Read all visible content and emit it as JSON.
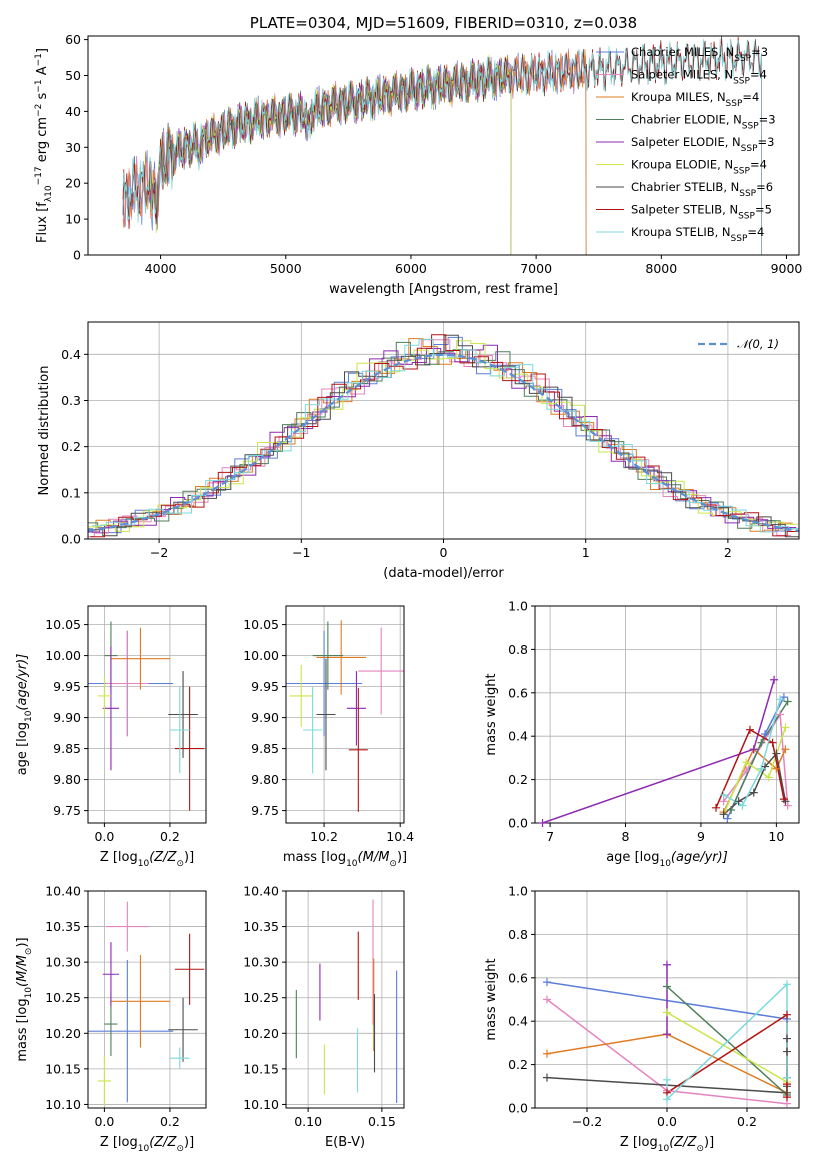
{
  "colors": {
    "Chabrier MILES": "#5b7fd8",
    "Salpeter MILES": "#e584c0",
    "Kroupa MILES": "#e07b23",
    "Chabrier ELODIE": "#4e7f5a",
    "Salpeter ELODIE": "#8e2ab3",
    "Kroupa ELODIE": "#c9e64a",
    "Chabrier STELIB": "#4b4b4b",
    "Salpeter STELIB": "#b31313",
    "Kroupa STELIB": "#7ad9dc"
  },
  "chart_data": [
    {
      "id": "spectrum",
      "type": "line",
      "title": "PLATE=0304, MJD=51609, FIBERID=0310, z=0.038",
      "xlabel": "wavelength [Angstrom, rest frame]",
      "ylabel_parts": [
        "Flux [f",
        "λ",
        "10",
        "−17",
        " erg cm",
        "−2",
        " s",
        "−1",
        " A",
        "−1",
        "]"
      ],
      "xlim": [
        3420,
        9100
      ],
      "ylim": [
        0,
        61
      ],
      "xticks": [
        4000,
        5000,
        6000,
        7000,
        8000,
        9000
      ],
      "yticks": [
        0,
        10,
        20,
        30,
        40,
        50,
        60
      ],
      "grid": false,
      "legend_position": "upper right",
      "series": [
        {
          "name": "Chabrier MILES",
          "legend": [
            "Chabrier MILES, N",
            "SSP",
            "=3"
          ]
        },
        {
          "name": "Salpeter MILES",
          "legend": [
            "Salpeter MILES, N",
            "SSP",
            "=4"
          ]
        },
        {
          "name": "Kroupa MILES",
          "legend": [
            "Kroupa MILES, N",
            "SSP",
            "=4"
          ]
        },
        {
          "name": "Chabrier ELODIE",
          "legend": [
            "Chabrier ELODIE, N",
            "SSP",
            "=3"
          ]
        },
        {
          "name": "Salpeter ELODIE",
          "legend": [
            "Salpeter ELODIE, N",
            "SSP",
            "=3"
          ]
        },
        {
          "name": "Kroupa ELODIE",
          "legend": [
            "Kroupa ELODIE, N",
            "SSP",
            "=4"
          ]
        },
        {
          "name": "Chabrier STELIB",
          "legend": [
            "Chabrier STELIB, N",
            "SSP",
            "=6"
          ]
        },
        {
          "name": "Salpeter STELIB",
          "legend": [
            "Salpeter STELIB, N",
            "SSP",
            "=5"
          ]
        },
        {
          "name": "Kroupa STELIB",
          "legend": [
            "Kroupa STELIB, N",
            "SSP",
            "=4"
          ]
        }
      ],
      "wavelength_coverage": {
        "MILES": [
          3700,
          7400
        ],
        "ELODIE": [
          3900,
          6800
        ],
        "STELIB": [
          3700,
          8800
        ]
      },
      "continuum": {
        "x": [
          3680,
          3750,
          3850,
          3950,
          4050,
          4200,
          4400,
          4600,
          4800,
          5000,
          5200,
          5400,
          5600,
          5800,
          6000,
          6200,
          6400,
          6600,
          6800,
          7000,
          7200,
          7400,
          7600,
          7800,
          8000,
          8200,
          8400,
          8600,
          8800
        ],
        "y": [
          14,
          17,
          19,
          22,
          27,
          30,
          33,
          36,
          38,
          39,
          40,
          42,
          43,
          44.5,
          46,
          47,
          48,
          49,
          50,
          50.5,
          51,
          51.5,
          52,
          53,
          53.5,
          54,
          54.5,
          55,
          55
        ]
      }
    },
    {
      "id": "residuals",
      "type": "step",
      "xlabel": "(data-model)/error",
      "ylabel": "Normed distribution",
      "xlim": [
        -2.5,
        2.5
      ],
      "ylim": [
        0,
        0.47
      ],
      "xticks": [
        -2,
        -1,
        0,
        1,
        2
      ],
      "xtick_labels": [
        "−2",
        "−1",
        "0",
        "1",
        "2"
      ],
      "yticks": [
        0.0,
        0.1,
        0.2,
        0.3,
        0.4
      ],
      "ytick_labels": [
        "0.0",
        "0.1",
        "0.2",
        "0.3",
        "0.4"
      ],
      "grid": true,
      "legend_position": "upper right",
      "reference": {
        "name": "𝒩(0, 1)",
        "mean": 0,
        "sigma": 1,
        "color": "#5b8fd6",
        "style": "dashed"
      },
      "bin_width": 0.1
    },
    {
      "id": "age_vs_Z",
      "type": "errorbar",
      "xlabel_parts": [
        "Z [log",
        "10",
        "(Z/Z",
        "⊙",
        ")]"
      ],
      "ylabel_parts": [
        "age  [log",
        "10",
        "(age/yr)]"
      ],
      "xlim": [
        -0.05,
        0.31
      ],
      "ylim": [
        9.73,
        10.08
      ],
      "xticks": [
        0.0,
        0.2
      ],
      "xtick_labels": [
        "0.0",
        "0.2"
      ],
      "yticks": [
        9.75,
        9.8,
        9.85,
        9.9,
        9.95,
        10.0,
        10.05
      ],
      "ytick_labels": [
        "9.75",
        "9.80",
        "9.85",
        "9.90",
        "9.95",
        "10.00",
        "10.05"
      ],
      "grid": true,
      "points": [
        {
          "name": "Chabrier MILES",
          "x": 0.07,
          "xerr": 0.14,
          "y": 9.955,
          "yerr": 0.085
        },
        {
          "name": "Salpeter MILES",
          "x": 0.07,
          "xerr": 0.065,
          "y": 9.955,
          "yerr": 0.085
        },
        {
          "name": "Kroupa MILES",
          "x": 0.11,
          "xerr": 0.09,
          "y": 9.995,
          "yerr": 0.05
        },
        {
          "name": "Chabrier ELODIE",
          "x": 0.02,
          "xerr": 0.02,
          "y": 10.0,
          "yerr": 0.055
        },
        {
          "name": "Salpeter ELODIE",
          "x": 0.02,
          "xerr": 0.025,
          "y": 9.915,
          "yerr": 0.1
        },
        {
          "name": "Kroupa ELODIE",
          "x": 0.0,
          "xerr": 0.02,
          "y": 9.935,
          "yerr": 0.03
        },
        {
          "name": "Chabrier STELIB",
          "x": 0.24,
          "xerr": 0.045,
          "y": 9.905,
          "yerr": 0.07
        },
        {
          "name": "Salpeter STELIB",
          "x": 0.26,
          "xerr": 0.045,
          "y": 9.85,
          "yerr": 0.1
        },
        {
          "name": "Kroupa STELIB",
          "x": 0.23,
          "xerr": 0.03,
          "y": 9.88,
          "yerr": 0.07
        }
      ]
    },
    {
      "id": "age_vs_mass",
      "type": "errorbar",
      "xlabel_parts": [
        "mass [log",
        "10",
        "(M/M",
        "⊙",
        ")]"
      ],
      "ylabel": "",
      "xlim": [
        10.1,
        10.41
      ],
      "ylim": [
        9.73,
        10.08
      ],
      "xticks": [
        10.2,
        10.4
      ],
      "xtick_labels": [
        "10.2",
        "10.4"
      ],
      "yticks": [
        9.75,
        9.8,
        9.85,
        9.9,
        9.95,
        10.0,
        10.05
      ],
      "ytick_labels": [
        "9.75",
        "9.80",
        "9.85",
        "9.90",
        "9.95",
        "10.00",
        "10.05"
      ],
      "grid": true,
      "points": [
        {
          "name": "Chabrier MILES",
          "x": 10.2,
          "xerr": 0.1,
          "y": 9.955,
          "yerr": 0.085
        },
        {
          "name": "Salpeter MILES",
          "x": 10.35,
          "xerr": 0.06,
          "y": 9.975,
          "yerr": 0.07
        },
        {
          "name": "Kroupa MILES",
          "x": 10.245,
          "xerr": 0.065,
          "y": 9.997,
          "yerr": 0.06
        },
        {
          "name": "Chabrier ELODIE",
          "x": 10.21,
          "xerr": 0.04,
          "y": 10.0,
          "yerr": 0.055
        },
        {
          "name": "Salpeter ELODIE",
          "x": 10.285,
          "xerr": 0.025,
          "y": 9.915,
          "yerr": 0.06
        },
        {
          "name": "Kroupa ELODIE",
          "x": 10.14,
          "xerr": 0.03,
          "y": 9.935,
          "yerr": 0.05
        },
        {
          "name": "Chabrier STELIB",
          "x": 10.205,
          "xerr": 0.025,
          "y": 9.905,
          "yerr": 0.09
        },
        {
          "name": "Salpeter STELIB",
          "x": 10.29,
          "xerr": 0.025,
          "y": 9.848,
          "yerr": 0.1
        },
        {
          "name": "Kroupa STELIB",
          "x": 10.17,
          "xerr": 0.025,
          "y": 9.88,
          "yerr": 0.07
        }
      ]
    },
    {
      "id": "weight_vs_age",
      "type": "line",
      "xlabel_parts": [
        "age  [log",
        "10",
        "(age/yr)]"
      ],
      "ylabel": "mass weight",
      "xlim": [
        6.8,
        10.3
      ],
      "ylim": [
        0,
        1.0
      ],
      "xticks": [
        7,
        8,
        9,
        10
      ],
      "yticks": [
        0.0,
        0.2,
        0.4,
        0.6,
        0.8,
        1.0
      ],
      "ytick_labels": [
        "0.0",
        "0.2",
        "0.4",
        "0.6",
        "0.8",
        "1.0"
      ],
      "grid": true,
      "series": [
        {
          "name": "Chabrier MILES",
          "x": [
            9.35,
            9.85,
            10.1
          ],
          "y": [
            0.02,
            0.41,
            0.58
          ]
        },
        {
          "name": "Salpeter MILES",
          "x": [
            9.3,
            9.6,
            10.05,
            10.15
          ],
          "y": [
            0.1,
            0.24,
            0.5,
            0.08
          ]
        },
        {
          "name": "Kroupa MILES",
          "x": [
            9.3,
            9.7,
            10.0,
            10.12
          ],
          "y": [
            0.05,
            0.34,
            0.25,
            0.34
          ]
        },
        {
          "name": "Chabrier ELODIE",
          "x": [
            9.4,
            9.8,
            10.15
          ],
          "y": [
            0.06,
            0.37,
            0.56
          ]
        },
        {
          "name": "Salpeter ELODIE",
          "x": [
            6.9,
            9.7,
            9.97
          ],
          "y": [
            0.0,
            0.34,
            0.66
          ]
        },
        {
          "name": "Kroupa ELODIE",
          "x": [
            9.3,
            9.6,
            9.9,
            10.12
          ],
          "y": [
            0.04,
            0.28,
            0.21,
            0.44
          ]
        },
        {
          "name": "Chabrier STELIB",
          "x": [
            9.3,
            9.5,
            9.7,
            9.85,
            10.0,
            10.12
          ],
          "y": [
            0.04,
            0.1,
            0.14,
            0.26,
            0.32,
            0.1
          ]
        },
        {
          "name": "Salpeter STELIB",
          "x": [
            9.2,
            9.65,
            9.95,
            10.1
          ],
          "y": [
            0.07,
            0.43,
            0.37,
            0.11
          ]
        },
        {
          "name": "Kroupa STELIB",
          "x": [
            9.3,
            9.55,
            9.8,
            10.05
          ],
          "y": [
            0.13,
            0.08,
            0.25,
            0.57
          ]
        }
      ]
    },
    {
      "id": "mass_vs_Z",
      "type": "errorbar",
      "xlabel_parts": [
        "Z [log",
        "10",
        "(Z/Z",
        "⊙",
        ")]"
      ],
      "ylabel_parts": [
        "mass [log",
        "10",
        "(M/M",
        "⊙",
        ")]"
      ],
      "xlim": [
        -0.05,
        0.31
      ],
      "ylim": [
        10.095,
        10.4
      ],
      "xticks": [
        0.0,
        0.2
      ],
      "xtick_labels": [
        "0.0",
        "0.2"
      ],
      "yticks": [
        10.1,
        10.15,
        10.2,
        10.25,
        10.3,
        10.35,
        10.4
      ],
      "ytick_labels": [
        "10.10",
        "10.15",
        "10.20",
        "10.25",
        "10.30",
        "10.35",
        "10.40"
      ],
      "grid": true,
      "points": [
        {
          "name": "Chabrier MILES",
          "x": 0.07,
          "xerr": 0.14,
          "y": 10.203,
          "yerr": 0.1
        },
        {
          "name": "Salpeter MILES",
          "x": 0.07,
          "xerr": 0.065,
          "y": 10.35,
          "yerr": 0.035
        },
        {
          "name": "Kroupa MILES",
          "x": 0.11,
          "xerr": 0.09,
          "y": 10.245,
          "yerr": 0.065
        },
        {
          "name": "Chabrier ELODIE",
          "x": 0.02,
          "xerr": 0.02,
          "y": 10.213,
          "yerr": 0.045
        },
        {
          "name": "Salpeter ELODIE",
          "x": 0.02,
          "xerr": 0.025,
          "y": 10.283,
          "yerr": 0.045
        },
        {
          "name": "Kroupa ELODIE",
          "x": 0.0,
          "xerr": 0.02,
          "y": 10.133,
          "yerr": 0.035
        },
        {
          "name": "Chabrier STELIB",
          "x": 0.24,
          "xerr": 0.045,
          "y": 10.205,
          "yerr": 0.045
        },
        {
          "name": "Salpeter STELIB",
          "x": 0.26,
          "xerr": 0.045,
          "y": 10.29,
          "yerr": 0.05
        },
        {
          "name": "Kroupa STELIB",
          "x": 0.23,
          "xerr": 0.03,
          "y": 10.165,
          "yerr": 0.015
        }
      ]
    },
    {
      "id": "mass_vs_ebv",
      "type": "errorbar",
      "xlabel": "E(B-V)",
      "ylabel": "",
      "xlim": [
        0.085,
        0.165
      ],
      "ylim": [
        10.095,
        10.4
      ],
      "xticks": [
        0.1,
        0.15
      ],
      "xtick_labels": [
        "0.10",
        "0.15"
      ],
      "yticks": [
        10.1,
        10.15,
        10.2,
        10.25,
        10.3,
        10.35,
        10.4
      ],
      "ytick_labels": [
        "10.10",
        "10.15",
        "10.20",
        "10.25",
        "10.30",
        "10.35",
        "10.40"
      ],
      "grid": true,
      "points": [
        {
          "name": "Chabrier MILES",
          "x": 0.16,
          "xerr": 0,
          "y": 10.195,
          "yerr": 0.093
        },
        {
          "name": "Salpeter MILES",
          "x": 0.144,
          "xerr": 0,
          "y": 10.3,
          "yerr": 0.088
        },
        {
          "name": "Kroupa MILES",
          "x": 0.1445,
          "xerr": 0,
          "y": 10.24,
          "yerr": 0.065
        },
        {
          "name": "Chabrier ELODIE",
          "x": 0.092,
          "xerr": 0,
          "y": 10.213,
          "yerr": 0.048
        },
        {
          "name": "Salpeter ELODIE",
          "x": 0.108,
          "xerr": 0,
          "y": 10.258,
          "yerr": 0.04
        },
        {
          "name": "Kroupa ELODIE",
          "x": 0.111,
          "xerr": 0,
          "y": 10.149,
          "yerr": 0.035
        },
        {
          "name": "Chabrier STELIB",
          "x": 0.145,
          "xerr": 0,
          "y": 10.2,
          "yerr": 0.055
        },
        {
          "name": "Salpeter STELIB",
          "x": 0.134,
          "xerr": 0,
          "y": 10.295,
          "yerr": 0.048
        },
        {
          "name": "Kroupa STELIB",
          "x": 0.1335,
          "xerr": 0,
          "y": 10.162,
          "yerr": 0.045
        }
      ]
    },
    {
      "id": "weight_vs_Z",
      "type": "line",
      "xlabel_parts": [
        "Z [log",
        "10",
        "(Z/Z",
        "⊙",
        ")]"
      ],
      "ylabel": "mass weight",
      "xlim": [
        -0.33,
        0.33
      ],
      "ylim": [
        0,
        1.0
      ],
      "xticks": [
        -0.2,
        0.0,
        0.2
      ],
      "xtick_labels": [
        "−0.2",
        "0.0",
        "0.2"
      ],
      "yticks": [
        0.0,
        0.2,
        0.4,
        0.6,
        0.8,
        1.0
      ],
      "ytick_labels": [
        "0.0",
        "0.2",
        "0.4",
        "0.6",
        "0.8",
        "1.0"
      ],
      "grid": true,
      "series": [
        {
          "name": "Chabrier MILES",
          "x": [
            -0.3,
            0.3
          ],
          "y": [
            0.58,
            0.41
          ]
        },
        {
          "name": "Salpeter MILES",
          "x": [
            -0.3,
            0.0,
            0.3
          ],
          "y": [
            0.5,
            0.08,
            0.02
          ]
        },
        {
          "name": "Kroupa MILES",
          "x": [
            -0.3,
            0.0,
            0.3
          ],
          "y": [
            0.25,
            0.34,
            0.07
          ]
        },
        {
          "name": "Chabrier ELODIE",
          "x": [
            0.0,
            0.3
          ],
          "y": [
            0.56,
            0.06
          ]
        },
        {
          "name": "Salpeter ELODIE",
          "x": [
            0.0,
            0.0
          ],
          "y": [
            0.66,
            0.34
          ]
        },
        {
          "name": "Kroupa ELODIE",
          "x": [
            0.0,
            0.3
          ],
          "y": [
            0.44,
            0.12
          ]
        },
        {
          "name": "Chabrier STELIB",
          "x": [
            -0.3,
            0.3,
            0.3,
            0.3,
            0.3,
            0.3
          ],
          "y": [
            0.14,
            0.07,
            0.1,
            0.14,
            0.26,
            0.32
          ]
        },
        {
          "name": "Salpeter STELIB",
          "x": [
            0.0,
            0.3,
            0.3,
            0.3
          ],
          "y": [
            0.07,
            0.43,
            0.11,
            0.05
          ]
        },
        {
          "name": "Kroupa STELIB",
          "x": [
            0.0,
            0.0,
            0.3,
            0.3
          ],
          "y": [
            0.13,
            0.04,
            0.57,
            0.14
          ]
        }
      ]
    }
  ]
}
